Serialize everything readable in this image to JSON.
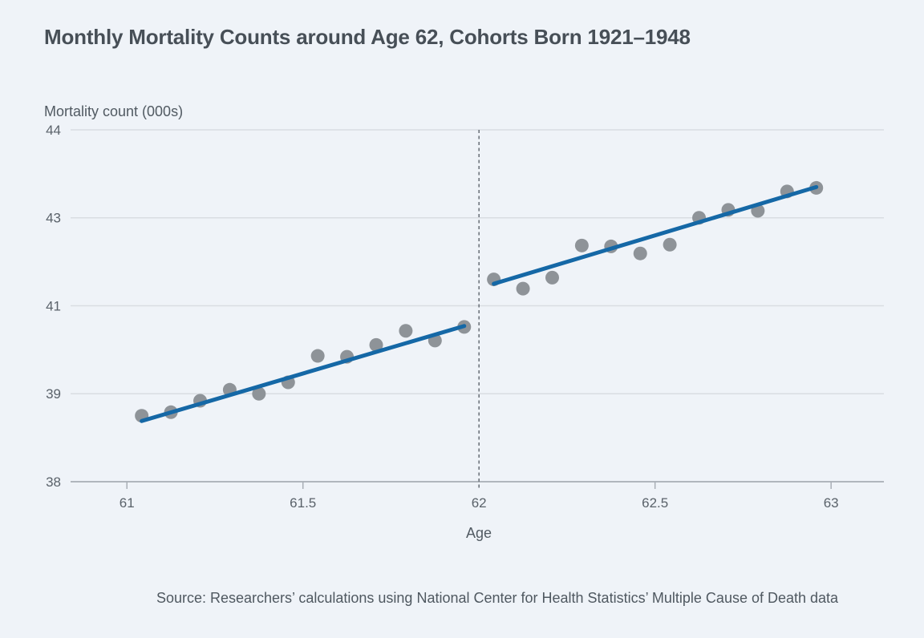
{
  "title": "Monthly Mortality Counts around Age 62, Cohorts Born 1921–1948",
  "y_axis_title": "Mortality count (000s)",
  "x_axis_title": "Age",
  "source": "Source: Researchers’ calculations using National Center for Health Statistics’ Multiple Cause of Death data",
  "colors": {
    "background": "#eff3f8",
    "title_text": "#474f57",
    "label_text": "#515a62",
    "tick_text": "#5a626a",
    "gridline": "#d9dde2",
    "axis_line": "#b0b6bd",
    "tick_mark": "#a8aeb5",
    "dot": "#8e9398",
    "fit_line": "#1568a6",
    "discontinuity_line": "#6f767d"
  },
  "chart_data": {
    "type": "scatter",
    "title": "Monthly Mortality Counts around Age 62, Cohorts Born 1921–1948",
    "xlabel": "Age",
    "ylabel": "Mortality count (000s)",
    "grid": "horizontal-only",
    "legend": "none",
    "xlim": [
      60.84,
      63.15
    ],
    "x_ticks": [
      {
        "value": 61,
        "label": "61"
      },
      {
        "value": 61.5,
        "label": "61.5"
      },
      {
        "value": 62,
        "label": "62"
      },
      {
        "value": 62.5,
        "label": "62.5"
      },
      {
        "value": 63,
        "label": "63"
      }
    ],
    "y_ticks_top_to_bottom": [
      {
        "value": 44,
        "label": "44"
      },
      {
        "value": 43,
        "label": "43"
      },
      {
        "value": 41,
        "label": "41"
      },
      {
        "value": 39,
        "label": "39"
      },
      {
        "value": 38,
        "label": "38"
      }
    ],
    "y_scale_note": "y tick labels are equally spaced on screen despite non-uniform values; values mapped piecewise-linearly between adjacent ticks",
    "discontinuity_x": 62,
    "series": [
      {
        "name": "monthly-mortality-age-61-62",
        "type": "scatter",
        "points": [
          [
            61.042,
            38.75
          ],
          [
            61.125,
            38.79
          ],
          [
            61.208,
            38.92
          ],
          [
            61.292,
            39.09
          ],
          [
            61.375,
            39.0
          ],
          [
            61.458,
            39.26
          ],
          [
            61.542,
            39.86
          ],
          [
            61.625,
            39.84
          ],
          [
            61.708,
            40.11
          ],
          [
            61.792,
            40.43
          ],
          [
            61.875,
            40.21
          ],
          [
            61.958,
            40.52
          ]
        ]
      },
      {
        "name": "trend-fit-age-61-62",
        "type": "line",
        "points": [
          [
            61.042,
            38.69
          ],
          [
            61.958,
            40.54
          ]
        ]
      },
      {
        "name": "monthly-mortality-age-62-63",
        "type": "scatter",
        "points": [
          [
            62.042,
            41.6
          ],
          [
            62.125,
            41.39
          ],
          [
            62.208,
            41.64
          ],
          [
            62.292,
            42.37
          ],
          [
            62.375,
            42.35
          ],
          [
            62.458,
            42.19
          ],
          [
            62.542,
            42.39
          ],
          [
            62.625,
            43.0
          ],
          [
            62.708,
            43.09
          ],
          [
            62.792,
            43.08
          ],
          [
            62.875,
            43.3
          ],
          [
            62.958,
            43.34
          ]
        ]
      },
      {
        "name": "trend-fit-age-62-63",
        "type": "line",
        "points": [
          [
            62.042,
            41.5
          ],
          [
            62.958,
            43.35
          ]
        ]
      }
    ]
  }
}
